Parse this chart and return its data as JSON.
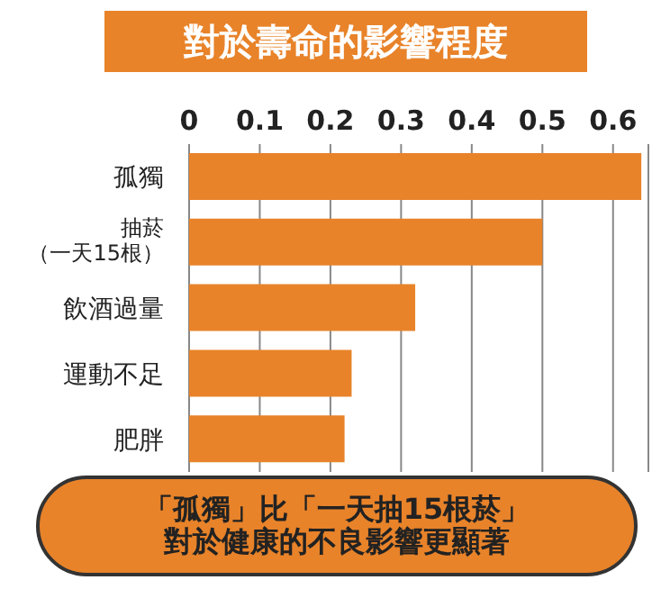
{
  "chart_data": {
    "type": "bar",
    "orientation": "horizontal",
    "title": "對於壽命的影響程度",
    "categories": [
      "孤獨",
      "抽菸（一天15根）",
      "飲酒過量",
      "運動不足",
      "肥胖"
    ],
    "values": [
      0.64,
      0.5,
      0.32,
      0.23,
      0.22
    ],
    "color": "#e8832a",
    "xlim": [
      0,
      0.65
    ],
    "xticks": [
      0,
      0.1,
      0.2,
      0.3,
      0.4,
      0.5,
      0.6
    ],
    "grid": "x",
    "annotations": [
      "「孤獨」比「一天抽15根菸」對於健康的不良影響更顯著"
    ]
  }
}
